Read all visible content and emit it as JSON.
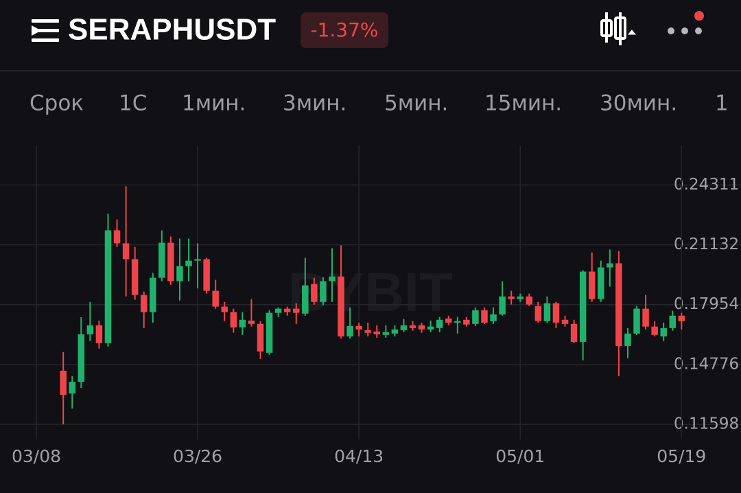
{
  "header": {
    "symbol": "SERAPHUSDT",
    "change": "-1.37%"
  },
  "timeframes": [
    "Срок",
    "1С",
    "1мин.",
    "3мин.",
    "5мин.",
    "15мин.",
    "30мин.",
    "1"
  ],
  "watermark": "BYBIT",
  "chart_data": {
    "type": "candlestick",
    "categories": [
      "03/08",
      null,
      null,
      null,
      null,
      null,
      null,
      null,
      null,
      null,
      null,
      null,
      null,
      null,
      null,
      null,
      null,
      null,
      "03/26",
      null,
      null,
      null,
      null,
      null,
      null,
      null,
      null,
      null,
      null,
      null,
      null,
      null,
      null,
      null,
      null,
      null,
      "04/13",
      null,
      null,
      null,
      null,
      null,
      null,
      null,
      null,
      null,
      null,
      null,
      null,
      null,
      null,
      null,
      null,
      null,
      "05/01",
      null,
      null,
      null,
      null,
      null,
      null,
      null,
      null,
      null,
      null,
      null,
      null,
      null,
      null,
      null,
      null,
      null,
      "05/19"
    ],
    "open": [
      null,
      null,
      null,
      0.1445,
      0.1324,
      0.1386,
      0.1638,
      0.1686,
      0.1591,
      0.219,
      0.2121,
      0.2037,
      0.1847,
      0.1756,
      0.1938,
      0.2124,
      0.192,
      0.2,
      0.2029,
      0.2037,
      0.1869,
      0.1785,
      0.1756,
      0.1675,
      0.1711,
      0.1693,
      0.154,
      0.1752,
      0.1774,
      0.1774,
      0.1748,
      0.1905,
      0.181,
      0.192,
      0.1945,
      0.1627,
      0.1682,
      0.166,
      0.1653,
      0.1635,
      0.1642,
      0.166,
      0.1686,
      0.1686,
      0.1664,
      0.1671,
      0.1722,
      0.17,
      0.1715,
      0.1693,
      0.1766,
      0.1708,
      0.1744,
      0.1839,
      0.1825,
      0.1839,
      0.1788,
      0.1708,
      0.1803,
      0.1715,
      0.1693,
      0.1598,
      0.1971,
      0.1825,
      0.1993,
      0.2015,
      0.1576,
      0.1642,
      0.1774,
      0.1679,
      0.1627,
      0.1671,
      0.1737
    ],
    "high": [
      null,
      null,
      null,
      0.1544,
      0.1416,
      0.1729,
      0.181,
      0.1711,
      0.2278,
      0.2248,
      0.2424,
      0.2102,
      0.1865,
      0.1964,
      0.219,
      0.2157,
      0.2146,
      0.2146,
      0.2121,
      0.2044,
      0.1927,
      0.181,
      0.1774,
      0.1756,
      0.1825,
      0.1708,
      0.1766,
      0.1781,
      0.1785,
      0.1803,
      0.2044,
      0.1938,
      0.1942,
      0.2095,
      0.211,
      0.1781,
      0.17,
      0.17,
      0.1686,
      0.1686,
      0.1686,
      0.1719,
      0.1708,
      0.17,
      0.1711,
      0.173,
      0.1737,
      0.173,
      0.173,
      0.1781,
      0.1781,
      0.1781,
      0.192,
      0.1869,
      0.1854,
      0.1854,
      0.181,
      0.1839,
      0.181,
      0.1737,
      0.1715,
      0.1978,
      0.2073,
      0.2029,
      0.2088,
      0.208,
      0.1671,
      0.1788,
      0.1847,
      0.1708,
      0.17,
      0.1763,
      0.1752
    ],
    "low": [
      null,
      null,
      null,
      0.116,
      0.1244,
      0.1353,
      0.1602,
      0.1562,
      0.1573,
      0.2102,
      0.1839,
      0.1821,
      0.1671,
      0.17,
      0.192,
      0.1901,
      0.1817,
      0.192,
      0.1883,
      0.1854,
      0.1774,
      0.1708,
      0.1646,
      0.1635,
      0.1679,
      0.1507,
      0.1529,
      0.173,
      0.1737,
      0.1693,
      0.1737,
      0.1795,
      0.1792,
      0.181,
      0.1616,
      0.1616,
      0.1627,
      0.1627,
      0.162,
      0.162,
      0.1627,
      0.1649,
      0.1657,
      0.1646,
      0.1649,
      0.1649,
      0.1686,
      0.1642,
      0.1679,
      0.1682,
      0.1693,
      0.1693,
      0.1737,
      0.1796,
      0.181,
      0.1788,
      0.17,
      0.17,
      0.1671,
      0.1679,
      0.1591,
      0.15,
      0.181,
      0.181,
      0.1891,
      0.1416,
      0.1511,
      0.1635,
      0.1664,
      0.1627,
      0.1602,
      0.1657,
      0.1664
    ],
    "close": [
      null,
      null,
      null,
      0.1317,
      0.1386,
      0.1638,
      0.1686,
      0.1591,
      0.219,
      0.2121,
      0.2037,
      0.1847,
      0.1756,
      0.1938,
      0.2124,
      0.192,
      0.2,
      0.2029,
      0.2037,
      0.1869,
      0.1785,
      0.1756,
      0.1675,
      0.1715,
      0.1693,
      0.1547,
      0.1752,
      0.1774,
      0.1756,
      0.1752,
      0.1898,
      0.181,
      0.192,
      0.1945,
      0.1627,
      0.1682,
      0.1664,
      0.1646,
      0.1638,
      0.1649,
      0.1664,
      0.1686,
      0.1671,
      0.1664,
      0.1679,
      0.1715,
      0.17,
      0.1708,
      0.169,
      0.1766,
      0.17,
      0.1744,
      0.1839,
      0.1825,
      0.1839,
      0.1796,
      0.1708,
      0.1803,
      0.17,
      0.1693,
      0.1598,
      0.1971,
      0.1825,
      0.1993,
      0.2015,
      0.1576,
      0.1642,
      0.1774,
      0.1679,
      0.1635,
      0.1671,
      0.1737,
      0.1708
    ],
    "up_color": "#20b26c",
    "down_color": "#ef454a",
    "ylim": [
      0.108,
      0.264
    ],
    "yticks": [
      0.11598,
      0.14776,
      0.17954,
      0.21132,
      0.24311
    ],
    "grid": true
  }
}
